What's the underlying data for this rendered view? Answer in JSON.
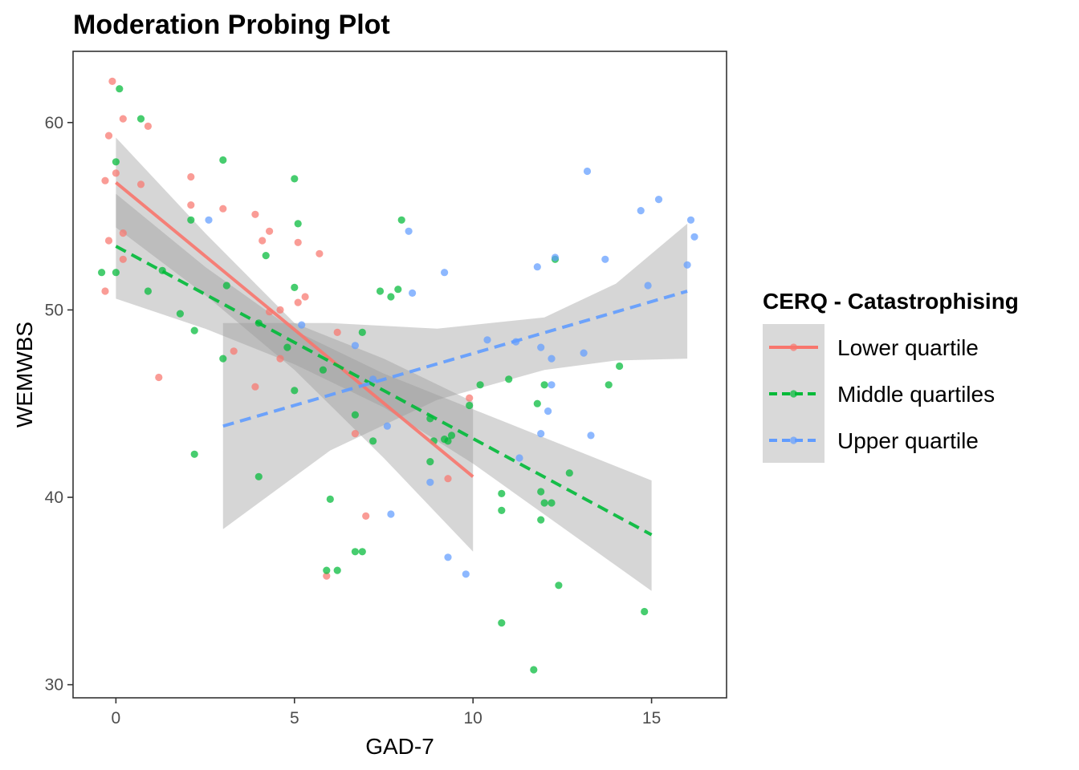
{
  "chart_data": {
    "type": "scatter",
    "title": "Moderation Probing Plot",
    "xlabel": "GAD-7",
    "ylabel": "WEMWBS",
    "xlim": [
      -1.2,
      17.1
    ],
    "ylim": [
      29.3,
      63.8
    ],
    "xticks": [
      0,
      5,
      10,
      15
    ],
    "yticks": [
      30,
      40,
      50,
      60
    ],
    "grid": false,
    "legend": {
      "title": "CERQ - Catastrophising",
      "position": "right"
    },
    "series": [
      {
        "name": "Lower quartile",
        "color": "#F8766D",
        "linetype": "solid",
        "fit": {
          "x": [
            0,
            10
          ],
          "y": [
            56.8,
            41.1
          ]
        },
        "ci_band": {
          "x": [
            0,
            2.5,
            5,
            7.5,
            10
          ],
          "lower": [
            54.4,
            50.8,
            46.8,
            42.1,
            37.1
          ],
          "upper": [
            59.2,
            54.1,
            49.3,
            47.4,
            45.1
          ]
        },
        "points": [
          [
            -0.1,
            62.2
          ],
          [
            -0.2,
            59.3
          ],
          [
            0.2,
            60.2
          ],
          [
            0.9,
            59.8
          ],
          [
            0.0,
            57.3
          ],
          [
            -0.3,
            56.9
          ],
          [
            0.7,
            56.7
          ],
          [
            -0.2,
            53.7
          ],
          [
            0.2,
            54.1
          ],
          [
            0.2,
            52.7
          ],
          [
            -0.3,
            51.0
          ],
          [
            2.1,
            57.1
          ],
          [
            2.1,
            55.6
          ],
          [
            3.0,
            55.4
          ],
          [
            3.9,
            55.1
          ],
          [
            4.1,
            53.7
          ],
          [
            4.3,
            54.2
          ],
          [
            5.1,
            53.6
          ],
          [
            5.7,
            53.0
          ],
          [
            5.3,
            50.7
          ],
          [
            5.1,
            50.4
          ],
          [
            4.3,
            49.9
          ],
          [
            4.6,
            50.0
          ],
          [
            3.3,
            47.8
          ],
          [
            4.6,
            47.4
          ],
          [
            3.9,
            45.9
          ],
          [
            1.2,
            46.4
          ],
          [
            6.2,
            48.8
          ],
          [
            6.7,
            43.4
          ],
          [
            7.0,
            39.0
          ],
          [
            5.9,
            35.8
          ],
          [
            9.3,
            41.0
          ],
          [
            9.9,
            45.3
          ]
        ]
      },
      {
        "name": "Middle quartiles",
        "color": "#00BA38",
        "linetype": "dashed",
        "fit": {
          "x": [
            0,
            15
          ],
          "y": [
            53.4,
            38.0
          ]
        },
        "ci_band": {
          "x": [
            0,
            2.5,
            5,
            7.5,
            10,
            12.5,
            15
          ],
          "lower": [
            50.6,
            49.0,
            47.1,
            44.8,
            41.8,
            38.4,
            35.0
          ],
          "upper": [
            56.2,
            52.3,
            48.9,
            46.6,
            44.7,
            42.8,
            40.9
          ]
        },
        "points": [
          [
            0.1,
            61.8
          ],
          [
            0.7,
            60.2
          ],
          [
            0.0,
            57.9
          ],
          [
            -0.4,
            52.0
          ],
          [
            0.0,
            52.0
          ],
          [
            0.9,
            51.0
          ],
          [
            1.3,
            52.1
          ],
          [
            1.8,
            49.8
          ],
          [
            2.1,
            54.8
          ],
          [
            2.2,
            48.9
          ],
          [
            2.2,
            42.3
          ],
          [
            3.0,
            58.0
          ],
          [
            3.1,
            51.3
          ],
          [
            3.0,
            47.4
          ],
          [
            4.0,
            49.3
          ],
          [
            4.2,
            52.9
          ],
          [
            4.0,
            41.1
          ],
          [
            5.0,
            57.0
          ],
          [
            5.1,
            54.6
          ],
          [
            5.0,
            51.2
          ],
          [
            4.8,
            48.0
          ],
          [
            5.0,
            45.7
          ],
          [
            5.8,
            46.8
          ],
          [
            6.0,
            39.9
          ],
          [
            5.9,
            36.1
          ],
          [
            6.2,
            36.1
          ],
          [
            6.7,
            37.1
          ],
          [
            6.9,
            37.1
          ],
          [
            6.9,
            48.8
          ],
          [
            6.7,
            44.4
          ],
          [
            7.2,
            43.0
          ],
          [
            7.4,
            51.0
          ],
          [
            7.7,
            50.7
          ],
          [
            7.9,
            51.1
          ],
          [
            8.0,
            54.8
          ],
          [
            8.8,
            44.2
          ],
          [
            8.8,
            41.9
          ],
          [
            8.9,
            43.0
          ],
          [
            9.2,
            43.1
          ],
          [
            9.3,
            43.0
          ],
          [
            9.4,
            43.3
          ],
          [
            9.9,
            44.9
          ],
          [
            10.2,
            46.0
          ],
          [
            10.8,
            40.2
          ],
          [
            10.8,
            39.3
          ],
          [
            10.8,
            33.3
          ],
          [
            11.0,
            46.3
          ],
          [
            11.7,
            30.8
          ],
          [
            11.8,
            45.0
          ],
          [
            11.9,
            40.3
          ],
          [
            11.9,
            38.8
          ],
          [
            12.0,
            46.0
          ],
          [
            12.0,
            39.7
          ],
          [
            12.2,
            39.7
          ],
          [
            12.3,
            52.7
          ],
          [
            12.4,
            35.3
          ],
          [
            12.7,
            41.3
          ],
          [
            13.8,
            46.0
          ],
          [
            14.1,
            47.0
          ],
          [
            14.8,
            33.9
          ]
        ]
      },
      {
        "name": "Upper quartile",
        "color": "#619CFF",
        "linetype": "dashed",
        "fit": {
          "x": [
            3,
            16
          ],
          "y": [
            43.8,
            51.0
          ]
        },
        "ci_band": {
          "x": [
            3,
            6,
            9,
            12,
            14,
            16
          ],
          "lower": [
            38.3,
            42.5,
            45.2,
            46.8,
            47.3,
            47.4
          ],
          "upper": [
            49.3,
            49.3,
            49.0,
            49.6,
            51.4,
            54.6
          ]
        },
        "points": [
          [
            2.6,
            54.8
          ],
          [
            5.2,
            49.2
          ],
          [
            6.7,
            48.1
          ],
          [
            7.2,
            46.3
          ],
          [
            7.6,
            43.8
          ],
          [
            7.7,
            39.1
          ],
          [
            8.2,
            54.2
          ],
          [
            8.3,
            50.9
          ],
          [
            8.8,
            40.8
          ],
          [
            9.2,
            52.0
          ],
          [
            9.3,
            36.8
          ],
          [
            9.8,
            35.9
          ],
          [
            10.4,
            48.4
          ],
          [
            11.2,
            48.3
          ],
          [
            11.3,
            42.1
          ],
          [
            11.8,
            52.3
          ],
          [
            11.9,
            48.0
          ],
          [
            11.9,
            43.4
          ],
          [
            12.1,
            44.6
          ],
          [
            12.2,
            47.4
          ],
          [
            12.2,
            46.0
          ],
          [
            12.3,
            52.8
          ],
          [
            13.1,
            47.7
          ],
          [
            13.2,
            57.4
          ],
          [
            13.3,
            43.3
          ],
          [
            13.7,
            52.7
          ],
          [
            14.7,
            55.3
          ],
          [
            14.9,
            51.3
          ],
          [
            15.2,
            55.9
          ],
          [
            16.0,
            52.4
          ],
          [
            16.1,
            54.8
          ],
          [
            16.2,
            53.9
          ]
        ]
      }
    ]
  }
}
